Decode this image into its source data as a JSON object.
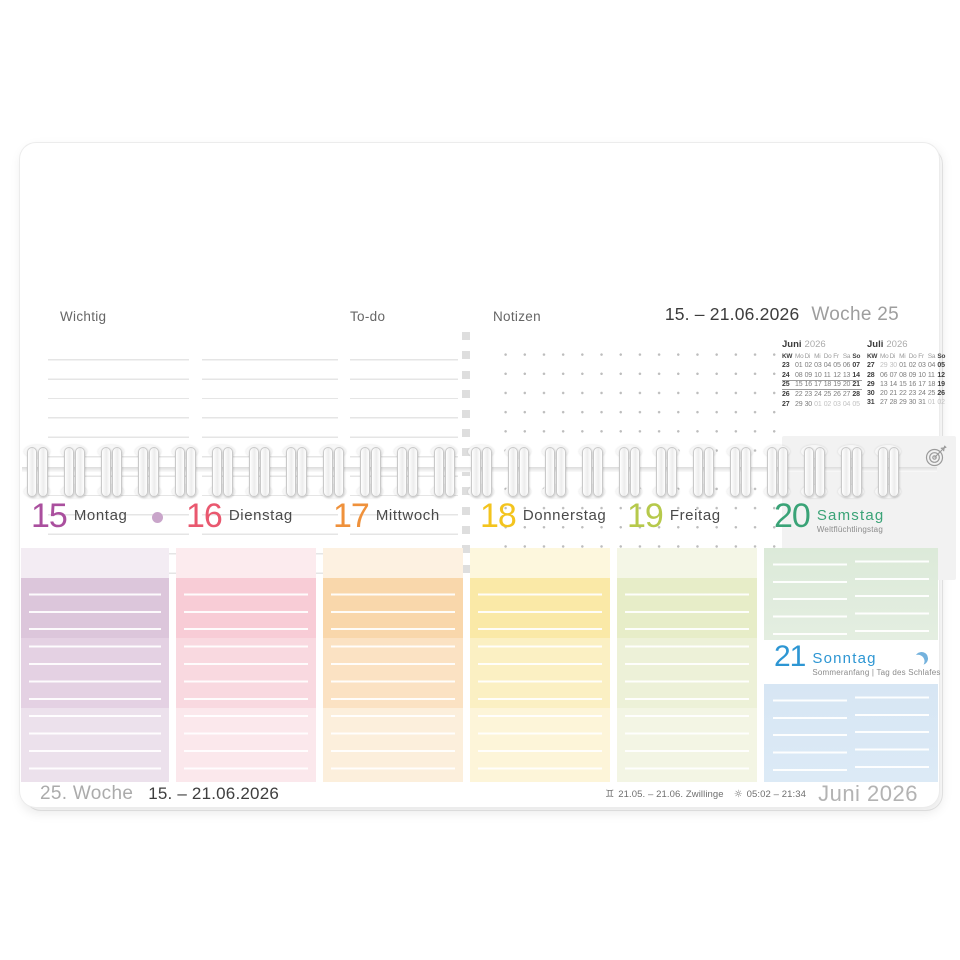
{
  "top": {
    "wichtig_label": "Wichtig",
    "todo_label": "To-do",
    "notizen_label": "Notizen",
    "date_range": "15. – 21.06.2026",
    "week_label": "Woche 25"
  },
  "mini_calendars": [
    {
      "month": "Juni",
      "year": "2026",
      "dow": [
        "KW",
        "Mo",
        "Di",
        "Mi",
        "Do",
        "Fr",
        "Sa",
        "So"
      ],
      "weeks": [
        {
          "kw": "23",
          "days": [
            "01",
            "02",
            "03",
            "04",
            "05",
            "06",
            "07"
          ],
          "muted": [],
          "current": false
        },
        {
          "kw": "24",
          "days": [
            "08",
            "09",
            "10",
            "11",
            "12",
            "13",
            "14"
          ],
          "muted": [],
          "current": false
        },
        {
          "kw": "25",
          "days": [
            "15",
            "16",
            "17",
            "18",
            "19",
            "20",
            "21"
          ],
          "muted": [],
          "current": true
        },
        {
          "kw": "26",
          "days": [
            "22",
            "23",
            "24",
            "25",
            "26",
            "27",
            "28"
          ],
          "muted": [],
          "current": false
        },
        {
          "kw": "27",
          "days": [
            "29",
            "30",
            "01",
            "02",
            "03",
            "04",
            "05"
          ],
          "muted": [
            2,
            3,
            4,
            5,
            6
          ],
          "current": false
        }
      ]
    },
    {
      "month": "Juli",
      "year": "2026",
      "dow": [
        "KW",
        "Mo",
        "Di",
        "Mi",
        "Do",
        "Fr",
        "Sa",
        "So"
      ],
      "weeks": [
        {
          "kw": "27",
          "days": [
            "29",
            "30",
            "01",
            "02",
            "03",
            "04",
            "05"
          ],
          "muted": [
            0,
            1
          ],
          "current": false
        },
        {
          "kw": "28",
          "days": [
            "06",
            "07",
            "08",
            "09",
            "10",
            "11",
            "12"
          ],
          "muted": [],
          "current": false
        },
        {
          "kw": "29",
          "days": [
            "13",
            "14",
            "15",
            "16",
            "17",
            "18",
            "19"
          ],
          "muted": [],
          "current": false
        },
        {
          "kw": "30",
          "days": [
            "20",
            "21",
            "22",
            "23",
            "24",
            "25",
            "26"
          ],
          "muted": [],
          "current": false
        },
        {
          "kw": "31",
          "days": [
            "27",
            "28",
            "29",
            "30",
            "31",
            "01",
            "02"
          ],
          "muted": [
            5,
            6
          ],
          "current": false
        }
      ]
    }
  ],
  "day_columns": [
    {
      "type": "day",
      "num": "15",
      "name": "Montag",
      "accent": "#aa4f9e",
      "marker": "moon-dot",
      "colors": {
        "band": "#f3ecf3",
        "strong": "#dcc6db",
        "mid": "#e4d1e3",
        "soft": "#ece1ec"
      }
    },
    {
      "type": "day",
      "num": "16",
      "name": "Dienstag",
      "accent": "#e9586f",
      "colors": {
        "band": "#fcebee",
        "strong": "#f8ccd6",
        "mid": "#f9d9e0",
        "soft": "#fbe8ec"
      }
    },
    {
      "type": "day",
      "num": "17",
      "name": "Mittwoch",
      "accent": "#ef913b",
      "colors": {
        "band": "#fdf1e1",
        "strong": "#f9d7ab",
        "mid": "#fbe2c3",
        "soft": "#fcefdc"
      }
    },
    {
      "type": "day",
      "num": "18",
      "name": "Donnerstag",
      "accent": "#f3c41e",
      "colors": {
        "band": "#fdf7dd",
        "strong": "#fae9a7",
        "mid": "#fbf0c3",
        "soft": "#fdf5d9"
      }
    },
    {
      "type": "day",
      "num": "19",
      "name": "Freitag",
      "accent": "#b6c94b",
      "colors": {
        "band": "#f4f6e6",
        "strong": "#e7edc8",
        "mid": "#edf1d8",
        "soft": "#f3f5e4"
      }
    },
    {
      "type": "weekend",
      "days": [
        {
          "num": "20",
          "name": "Samstag",
          "accent": "#3aa377",
          "note": "Weltflüchtlingstag",
          "bg_top": "#dcead9",
          "bg_bottom": "#e4eee1"
        },
        {
          "num": "21",
          "name": "Sonntag",
          "accent": "#2d96d3",
          "note": "Sommeranfang | Tag des Schlafes",
          "marker": "crescent-moon",
          "bg_top": "#d7e6f4",
          "bg_bottom": "#dceaf6"
        }
      ]
    }
  ],
  "footer": {
    "week_label": "25. Woche",
    "date_range": "15. – 21.06.2026",
    "zodiac_symbol": "♊",
    "zodiac_text": "21.05. – 21.06. Zwillinge",
    "sun_symbol": "☼",
    "sun_times": "05:02 – 21:34",
    "month_label": "Juni 2026"
  },
  "icons": {
    "goal_icon": "target-with-arrow",
    "montag_marker": "full-moon-dot",
    "sonntag_marker": "waning-crescent-moon"
  }
}
